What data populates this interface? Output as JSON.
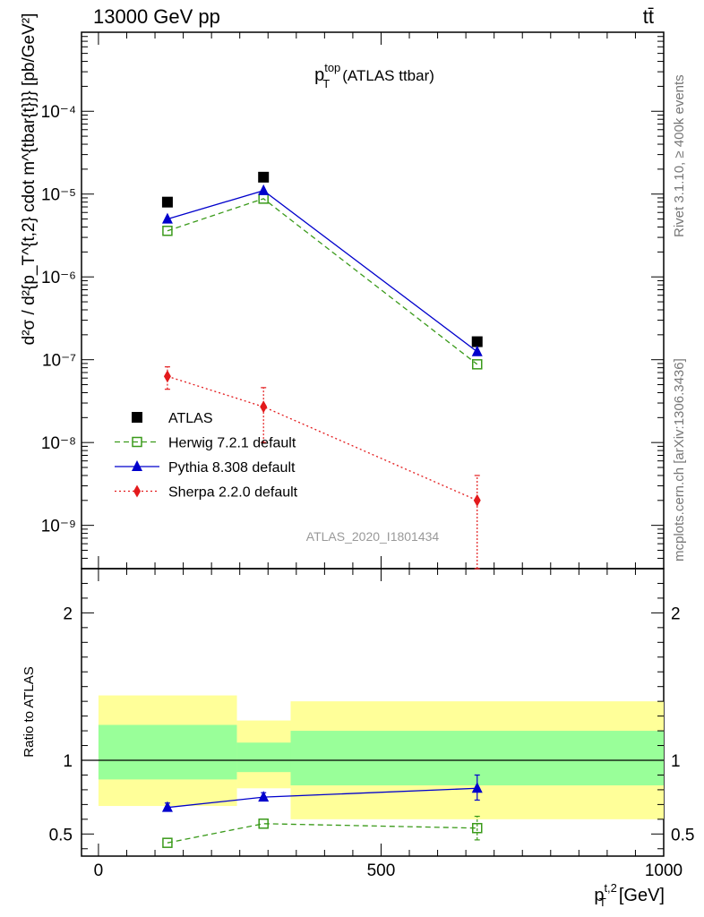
{
  "header": {
    "left": "13000 GeV pp",
    "right": "tt̄",
    "side_top": "Rivet 3.1.10, ≥ 400k events",
    "side_bottom": "mcplots.cern.ch [arXiv:1306.3436]",
    "watermark": "ATLAS_2020_I1801434"
  },
  "chart_data": [
    {
      "type": "scatter",
      "panel": "main",
      "title_base": "p",
      "title_sup": "top",
      "title_sub": "T",
      "title_suffix": "(ATLAS ttbar)",
      "ylabel": "d²σ / d²{p_T^{t,2} cdot m^{tbar{t}}} [pb/GeV²]",
      "yscale": "log",
      "ylim": [
        3e-10,
        0.0009
      ],
      "xlim": [
        -30,
        1000
      ],
      "ytick_labels": [
        "10⁻⁹",
        "10⁻⁸",
        "10⁻⁷",
        "10⁻⁶",
        "10⁻⁵",
        "10⁻⁴"
      ],
      "ytick_values": [
        1e-09,
        1e-08,
        1e-07,
        1e-06,
        1e-05,
        0.0001
      ],
      "legend_position": "lower-left",
      "series": [
        {
          "name": "ATLAS",
          "color": "#000000",
          "marker": "square",
          "line": "none",
          "points": [
            {
              "x": 122,
              "y": 8e-06
            },
            {
              "x": 292,
              "y": 1.6e-05
            },
            {
              "x": 670,
              "y": 1.65e-07
            }
          ]
        },
        {
          "name": "Herwig 7.2.1 default",
          "color": "#3a9a1a",
          "marker": "open-square",
          "line": "dashed",
          "points": [
            {
              "x": 122,
              "y": 3.6e-06
            },
            {
              "x": 292,
              "y": 8.8e-06
            },
            {
              "x": 670,
              "y": 8.8e-08
            }
          ]
        },
        {
          "name": "Pythia 8.308 default",
          "color": "#0000cc",
          "marker": "triangle",
          "line": "solid",
          "points": [
            {
              "x": 122,
              "y": 5e-06
            },
            {
              "x": 292,
              "y": 1.1e-05
            },
            {
              "x": 670,
              "y": 1.25e-07
            }
          ]
        },
        {
          "name": "Sherpa 2.2.0 default",
          "color": "#e31a1c",
          "marker": "diamond",
          "line": "dotted",
          "points": [
            {
              "x": 122,
              "y": 6.3e-08,
              "ylo": 4.4e-08,
              "yhi": 8.2e-08
            },
            {
              "x": 292,
              "y": 2.7e-08,
              "ylo": 1e-08,
              "yhi": 4.6e-08
            },
            {
              "x": 670,
              "y": 2e-09,
              "ylo": 3e-10,
              "yhi": 4e-09
            }
          ]
        }
      ]
    },
    {
      "type": "scatter",
      "panel": "ratio",
      "ylabel": "Ratio to ATLAS",
      "xlabel": "[GeV]",
      "xlabel_base": "p",
      "xlabel_sup": "t,2",
      "xlabel_sub": "T",
      "xlim": [
        -30,
        1000
      ],
      "ylim": [
        0.35,
        2.3
      ],
      "xticks": [
        0,
        500,
        1000
      ],
      "xtick_labels": [
        "0",
        "500",
        "1000"
      ],
      "yticks": [
        0.5,
        1,
        2
      ],
      "ytick_labels": [
        "0.5",
        "1",
        "2"
      ],
      "bands": [
        {
          "x0": 0,
          "x1": 245,
          "yellow": [
            0.69,
            1.44
          ],
          "green": [
            0.87,
            1.24
          ]
        },
        {
          "x0": 245,
          "x1": 340,
          "yellow": [
            0.81,
            1.27
          ],
          "green": [
            0.92,
            1.12
          ]
        },
        {
          "x0": 340,
          "x1": 1000,
          "yellow": [
            0.6,
            1.4
          ],
          "green": [
            0.83,
            1.2
          ]
        }
      ],
      "series": [
        {
          "name": "Herwig 7.2.1 default",
          "color": "#3a9a1a",
          "marker": "open-square",
          "line": "dashed",
          "points": [
            {
              "x": 122,
              "y": 0.44
            },
            {
              "x": 292,
              "y": 0.57
            },
            {
              "x": 670,
              "y": 0.54,
              "ylo": 0.46,
              "yhi": 0.62
            }
          ]
        },
        {
          "name": "Pythia 8.308 default",
          "color": "#0000cc",
          "marker": "triangle",
          "line": "solid",
          "points": [
            {
              "x": 122,
              "y": 0.68,
              "ylo": 0.66,
              "yhi": 0.71
            },
            {
              "x": 292,
              "y": 0.75,
              "ylo": 0.73,
              "yhi": 0.78
            },
            {
              "x": 670,
              "y": 0.81,
              "ylo": 0.73,
              "yhi": 0.9
            }
          ]
        }
      ]
    }
  ],
  "colors": {
    "yellow_band": "#ffff99",
    "green_band": "#99ff99"
  }
}
